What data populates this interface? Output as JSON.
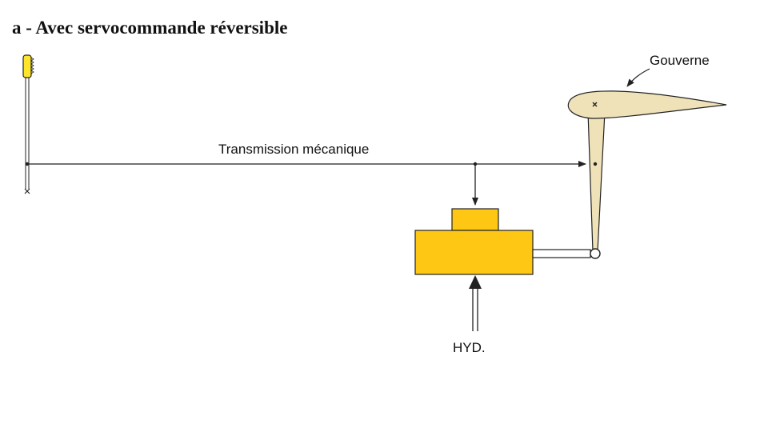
{
  "title": "a - Avec servocommande réversible",
  "labels": {
    "transmission": "Transmission mécanique",
    "gouverne": "Gouverne",
    "hyd": "HYD."
  },
  "colors": {
    "actuator": "#fec713",
    "control_surface": "#efe2b8",
    "stick_grip": "#fde52c",
    "line": "#222222"
  }
}
